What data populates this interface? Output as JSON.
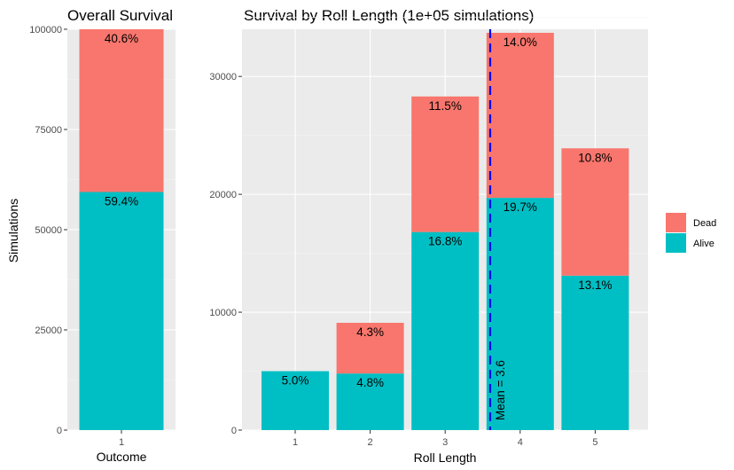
{
  "colors": {
    "dead": "#F8766D",
    "alive": "#00BFC4",
    "panel": "#EBEBEB",
    "grid_major": "#FFFFFF",
    "grid_minor": "#F4F4F4",
    "mean_line": "#0000EE"
  },
  "chart_data": [
    {
      "type": "bar",
      "stacked": true,
      "title": "Overall Survival",
      "xlabel": "Outcome",
      "ylabel": "Simulations",
      "categories": [
        "1"
      ],
      "series": [
        {
          "name": "Alive",
          "values": [
            59400
          ],
          "labels": [
            "59.4%"
          ]
        },
        {
          "name": "Dead",
          "values": [
            40600
          ],
          "labels": [
            "40.6%"
          ]
        }
      ],
      "ylim": [
        0,
        100000
      ],
      "yticks": [
        0,
        25000,
        50000,
        75000,
        100000
      ],
      "ytick_labels": [
        "0",
        "25000",
        "50000",
        "75000",
        "100000"
      ],
      "grid": true
    },
    {
      "type": "bar",
      "stacked": true,
      "title": "Survival by Roll Length (1e+05 simulations)",
      "xlabel": "Roll Length",
      "ylabel": "",
      "categories": [
        "1",
        "2",
        "3",
        "4",
        "5"
      ],
      "series": [
        {
          "name": "Alive",
          "values": [
            5000,
            4800,
            16800,
            19700,
            13100
          ],
          "labels": [
            "5.0%",
            "4.8%",
            "16.8%",
            "19.7%",
            "13.1%"
          ]
        },
        {
          "name": "Dead",
          "values": [
            0,
            4300,
            11500,
            14000,
            10800
          ],
          "labels": [
            "",
            "4.3%",
            "11.5%",
            "14.0%",
            "10.8%"
          ]
        }
      ],
      "ylim": [
        0,
        34000
      ],
      "yticks": [
        0,
        10000,
        20000,
        30000
      ],
      "ytick_labels": [
        "0",
        "10000",
        "20000",
        "30000"
      ],
      "mean_line": {
        "x": 3.6,
        "label": "Mean = 3.6"
      },
      "grid": true
    }
  ],
  "legend": {
    "items": [
      {
        "name": "Dead",
        "color": "#F8766D"
      },
      {
        "name": "Alive",
        "color": "#00BFC4"
      }
    ],
    "position": "right"
  }
}
